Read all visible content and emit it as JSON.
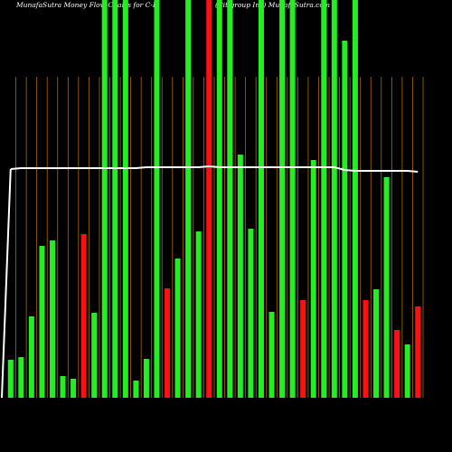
{
  "chart_data": {
    "type": "bar",
    "title": "MunafaSutra  Money Flow  Charts for C-K",
    "subtitle": "(Citigroup Inc) MunafaSutra.com",
    "categories": [
      null,
      null,
      null,
      null,
      null,
      null,
      null,
      null,
      null,
      null,
      null,
      null,
      null,
      null,
      null,
      null,
      null,
      null,
      null,
      null,
      null,
      null,
      null,
      null,
      null,
      null,
      null,
      null,
      null,
      null,
      null,
      null,
      null,
      null,
      null,
      null,
      null,
      null,
      null,
      null
    ],
    "values": [
      42,
      45,
      90,
      168,
      174,
      24,
      21,
      181,
      94,
      440,
      440,
      440,
      19,
      43,
      440,
      121,
      154,
      440,
      184,
      440,
      440,
      440,
      269,
      187,
      440,
      95,
      440,
      440,
      108,
      263,
      440,
      440,
      395,
      440,
      108,
      120,
      244,
      75,
      59,
      101
    ],
    "colors": [
      "#22ee22",
      "#22ee22",
      "#22ee22",
      "#22ee22",
      "#22ee22",
      "#22ee22",
      "#22ee22",
      "#ff1010",
      "#22ee22",
      "#22ee22",
      "#22ee22",
      "#22ee22",
      "#22ee22",
      "#22ee22",
      "#22ee22",
      "#ff1010",
      "#22ee22",
      "#22ee22",
      "#22ee22",
      "#ff1010",
      "#22ee22",
      "#22ee22",
      "#22ee22",
      "#22ee22",
      "#22ee22",
      "#22ee22",
      "#22ee22",
      "#22ee22",
      "#ff1010",
      "#22ee22",
      "#22ee22",
      "#22ee22",
      "#22ee22",
      "#22ee22",
      "#ff1010",
      "#22ee22",
      "#22ee22",
      "#ff1010",
      "#22ee22",
      "#ff1010"
    ],
    "line": {
      "color": "#ffffff",
      "values": [
        253,
        254,
        254,
        254,
        254,
        254,
        254,
        254,
        254,
        254,
        254,
        254,
        254,
        255,
        255,
        255,
        255,
        255,
        255,
        256,
        255,
        255,
        255,
        255,
        255,
        255,
        255,
        255,
        255,
        255,
        255,
        255,
        252,
        251,
        251,
        251,
        251,
        251,
        251,
        250
      ]
    },
    "ylim": [
      0,
      440
    ]
  }
}
